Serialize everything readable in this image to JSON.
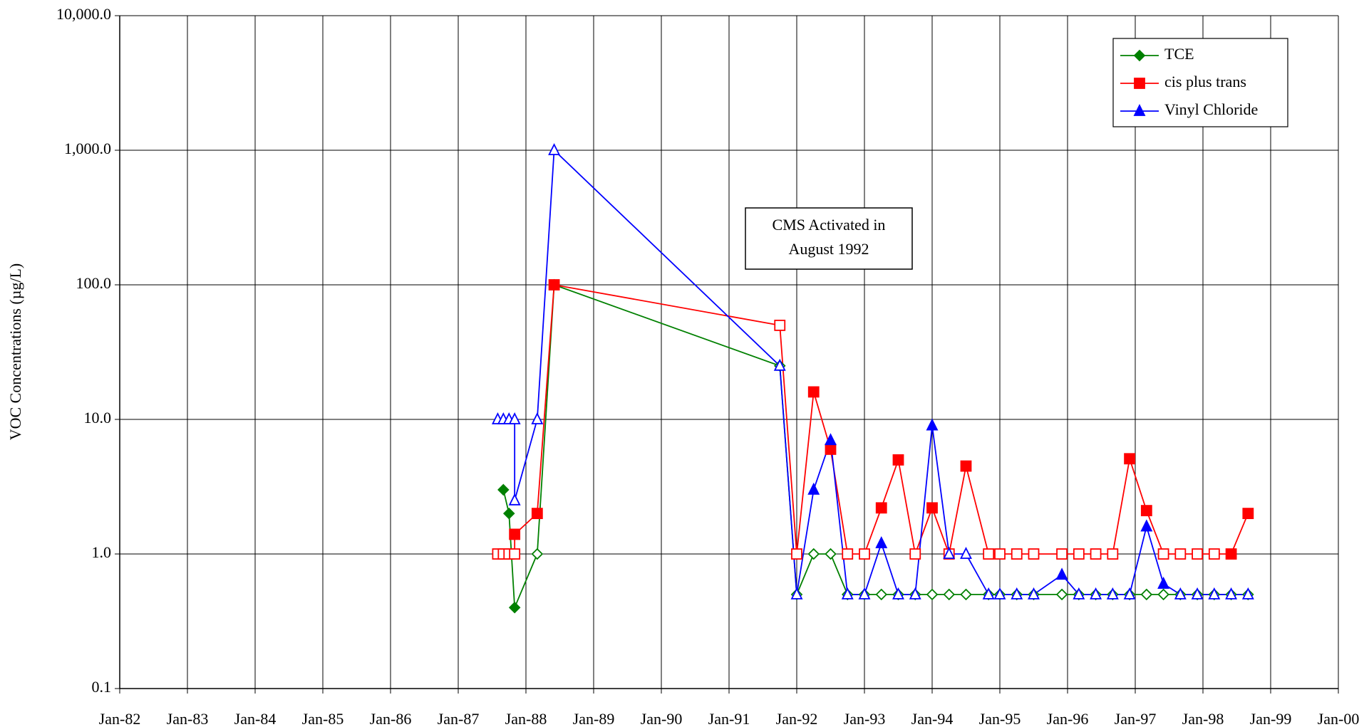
{
  "chart_data": {
    "type": "line",
    "y_label": "VOC Concentrations (µg/L)",
    "log_y": true,
    "grid": true,
    "legend": "upper right",
    "annotation": [
      "CMS Activated in",
      "August 1992"
    ],
    "xlim": [
      "1982-01",
      "2000-01"
    ],
    "xticks": [
      {
        "value": "1982-01",
        "label": "Jan-82"
      },
      {
        "value": "1983-01",
        "label": "Jan-83"
      },
      {
        "value": "1984-01",
        "label": "Jan-84"
      },
      {
        "value": "1985-01",
        "label": "Jan-85"
      },
      {
        "value": "1986-01",
        "label": "Jan-86"
      },
      {
        "value": "1987-01",
        "label": "Jan-87"
      },
      {
        "value": "1988-01",
        "label": "Jan-88"
      },
      {
        "value": "1989-01",
        "label": "Jan-89"
      },
      {
        "value": "1990-01",
        "label": "Jan-90"
      },
      {
        "value": "1991-01",
        "label": "Jan-91"
      },
      {
        "value": "1992-01",
        "label": "Jan-92"
      },
      {
        "value": "1993-01",
        "label": "Jan-93"
      },
      {
        "value": "1994-01",
        "label": "Jan-94"
      },
      {
        "value": "1995-01",
        "label": "Jan-95"
      },
      {
        "value": "1996-01",
        "label": "Jan-96"
      },
      {
        "value": "1997-01",
        "label": "Jan-97"
      },
      {
        "value": "1998-01",
        "label": "Jan-98"
      },
      {
        "value": "1999-01",
        "label": "Jan-99"
      },
      {
        "value": "2000-01",
        "label": "Jan-00"
      }
    ],
    "ylim": [
      0.1,
      10000
    ],
    "yticks": [
      {
        "value": 0.1,
        "label": "0.1"
      },
      {
        "value": 1,
        "label": "1.0"
      },
      {
        "value": 10,
        "label": "10.0"
      },
      {
        "value": 100,
        "label": "100.0"
      },
      {
        "value": 1000,
        "label": "1,000.0"
      },
      {
        "value": 10000,
        "label": "10,000.0"
      }
    ],
    "series": [
      {
        "name": "TCE",
        "color": "#008000",
        "marker": "diamond",
        "x": [
          "1987-09",
          "1987-10",
          "1987-11",
          "1988-03",
          "1988-06",
          "1991-10",
          "1992-01",
          "1992-04",
          "1992-07",
          "1992-10",
          "1993-01",
          "1993-04",
          "1993-07",
          "1993-10",
          "1994-01",
          "1994-04",
          "1994-07",
          "1994-11",
          "1995-01",
          "1995-04",
          "1995-07",
          "1995-12",
          "1996-03",
          "1996-06",
          "1996-09",
          "1996-12",
          "1997-03",
          "1997-06",
          "1997-09",
          "1997-12",
          "1998-03",
          "1998-06",
          "1998-09"
        ],
        "values": [
          3,
          2,
          0.4,
          1,
          100,
          25,
          0.5,
          1,
          1,
          0.5,
          0.5,
          0.5,
          0.5,
          0.5,
          0.5,
          0.5,
          0.5,
          0.5,
          0.5,
          0.5,
          0.5,
          0.5,
          0.5,
          0.5,
          0.5,
          0.5,
          0.5,
          0.5,
          0.5,
          0.5,
          0.5,
          0.5,
          0.5
        ],
        "open": [
          false,
          false,
          false,
          true,
          false,
          true,
          true,
          true,
          true,
          true,
          true,
          true,
          true,
          true,
          true,
          true,
          true,
          true,
          true,
          true,
          true,
          true,
          true,
          true,
          true,
          true,
          true,
          true,
          true,
          true,
          true,
          true,
          true
        ]
      },
      {
        "name": "cis plus trans",
        "color": "#ff0000",
        "marker": "square",
        "x": [
          "1987-08",
          "1987-09",
          "1987-10",
          "1987-11",
          "1987-11",
          "1988-03",
          "1988-06",
          "1991-10",
          "1992-01",
          "1992-04",
          "1992-07",
          "1992-10",
          "1993-01",
          "1993-04",
          "1993-07",
          "1993-10",
          "1994-01",
          "1994-04",
          "1994-07",
          "1994-11",
          "1995-01",
          "1995-04",
          "1995-07",
          "1995-12",
          "1996-03",
          "1996-06",
          "1996-09",
          "1996-12",
          "1997-03",
          "1997-06",
          "1997-09",
          "1997-12",
          "1998-03",
          "1998-06",
          "1998-09"
        ],
        "values": [
          1,
          1,
          1,
          1,
          1.4,
          2,
          100,
          50,
          1,
          16,
          6,
          1,
          1,
          2.2,
          5,
          1,
          2.2,
          1,
          4.5,
          1,
          1,
          1,
          1,
          1,
          1,
          1,
          1,
          5.1,
          2.1,
          1,
          1,
          1,
          1,
          1,
          2
        ],
        "open": [
          true,
          true,
          true,
          true,
          false,
          false,
          false,
          true,
          true,
          false,
          false,
          true,
          true,
          false,
          false,
          true,
          false,
          true,
          false,
          true,
          true,
          true,
          true,
          true,
          true,
          true,
          true,
          false,
          false,
          true,
          true,
          true,
          true,
          false,
          false
        ]
      },
      {
        "name": "Vinyl Chloride",
        "color": "#0000ff",
        "marker": "triangle",
        "x": [
          "1987-08",
          "1987-09",
          "1987-10",
          "1987-11",
          "1987-11",
          "1988-03",
          "1988-06",
          "1991-10",
          "1992-01",
          "1992-04",
          "1992-07",
          "1992-10",
          "1993-01",
          "1993-04",
          "1993-07",
          "1993-10",
          "1994-01",
          "1994-04",
          "1994-07",
          "1994-11",
          "1995-01",
          "1995-04",
          "1995-07",
          "1995-12",
          "1996-03",
          "1996-06",
          "1996-09",
          "1996-12",
          "1997-03",
          "1997-06",
          "1997-09",
          "1997-12",
          "1998-03",
          "1998-06",
          "1998-09"
        ],
        "values": [
          10,
          10,
          10,
          10,
          2.5,
          10,
          1000,
          25,
          0.5,
          3,
          7,
          0.5,
          0.5,
          1.2,
          0.5,
          0.5,
          9,
          1,
          1,
          0.5,
          0.5,
          0.5,
          0.5,
          0.7,
          0.5,
          0.5,
          0.5,
          0.5,
          1.6,
          0.6,
          0.5,
          0.5,
          0.5,
          0.5,
          0.5
        ],
        "open": [
          true,
          true,
          true,
          true,
          true,
          true,
          true,
          true,
          true,
          false,
          false,
          true,
          true,
          false,
          true,
          true,
          false,
          true,
          true,
          true,
          true,
          true,
          true,
          false,
          true,
          true,
          true,
          true,
          false,
          false,
          true,
          true,
          true,
          true,
          true
        ]
      }
    ]
  }
}
